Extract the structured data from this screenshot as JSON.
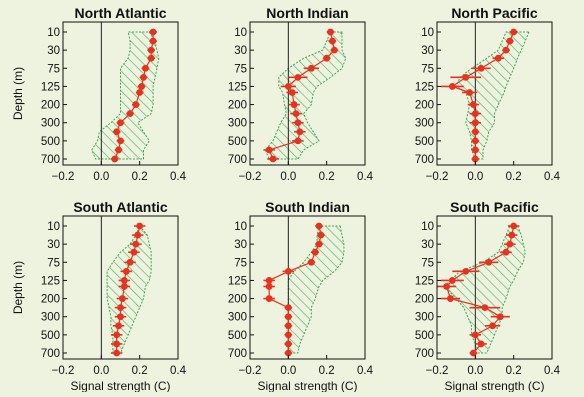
{
  "ylabel": "Depth (m)",
  "xlabel": "Signal strength (C)",
  "depth_ticks": [
    "10",
    "30",
    "75",
    "125",
    "200",
    "300",
    "500",
    "700"
  ],
  "x_ticks": [
    "−0.2",
    "0.0",
    "0.2",
    "0.4"
  ],
  "x_ticks_clipped": [
    "−0.2",
    "0.0",
    "0.2",
    "0.4"
  ],
  "colors": {
    "band_edge": "#3aa655",
    "band_hatch": "#5cb96a",
    "marker": "#e8321e",
    "axis": "#111111",
    "zero_line": "#222222"
  },
  "chart_data": [
    {
      "type": "line",
      "title": "North Atlantic",
      "xlim": [
        -0.2,
        0.4
      ],
      "depths": [
        10,
        20,
        30,
        50,
        75,
        100,
        125,
        150,
        200,
        250,
        300,
        400,
        500,
        600,
        700
      ],
      "values": [
        0.27,
        0.27,
        0.26,
        0.26,
        0.23,
        0.22,
        0.21,
        0.2,
        0.18,
        0.15,
        0.1,
        0.08,
        0.1,
        0.09,
        0.07
      ],
      "errors": [
        0.02,
        0.02,
        0.02,
        0.02,
        0.02,
        0.02,
        0.02,
        0.02,
        0.02,
        0.02,
        0.02,
        0.02,
        0.02,
        0.02,
        0.02
      ],
      "band_low": [
        0.14,
        0.15,
        0.15,
        0.14,
        0.1,
        0.1,
        0.1,
        0.1,
        0.1,
        0.1,
        0.05,
        -0.01,
        -0.02,
        -0.05,
        -0.03
      ],
      "band_high": [
        0.25,
        0.28,
        0.29,
        0.3,
        0.29,
        0.28,
        0.27,
        0.27,
        0.27,
        0.26,
        0.19,
        0.22,
        0.25,
        0.22,
        0.22
      ]
    },
    {
      "type": "line",
      "title": "North Indian",
      "xlim": [
        -0.2,
        0.4
      ],
      "depths": [
        10,
        20,
        30,
        50,
        75,
        100,
        125,
        150,
        200,
        250,
        300,
        400,
        500,
        600,
        700
      ],
      "values": [
        0.22,
        0.23,
        0.24,
        0.2,
        0.12,
        0.05,
        0.0,
        0.02,
        0.03,
        0.04,
        0.05,
        0.06,
        0.05,
        -0.1,
        -0.08
      ],
      "errors": [
        0.02,
        0.02,
        0.02,
        0.02,
        0.04,
        0.05,
        0.04,
        0.03,
        0.03,
        0.03,
        0.03,
        0.03,
        0.03,
        0.03,
        0.03
      ],
      "band_low": [
        0.22,
        0.2,
        0.18,
        0.08,
        0.0,
        -0.05,
        -0.05,
        -0.03,
        -0.02,
        -0.01,
        -0.04,
        -0.06,
        -0.08,
        -0.12,
        -0.1
      ],
      "band_high": [
        0.28,
        0.28,
        0.28,
        0.3,
        0.28,
        0.22,
        0.15,
        0.13,
        0.12,
        0.08,
        0.1,
        0.13,
        0.16,
        0.08,
        0.05
      ]
    },
    {
      "type": "line",
      "title": "North Pacific",
      "xlim": [
        -0.2,
        0.4
      ],
      "depths": [
        10,
        20,
        30,
        50,
        75,
        100,
        125,
        150,
        200,
        250,
        300,
        400,
        500,
        600,
        700
      ],
      "values": [
        0.2,
        0.18,
        0.16,
        0.12,
        0.03,
        -0.05,
        -0.12,
        -0.03,
        -0.01,
        0.0,
        0.0,
        0.0,
        0.0,
        0.0,
        0.0
      ],
      "errors": [
        0.02,
        0.02,
        0.02,
        0.03,
        0.05,
        0.08,
        0.06,
        0.04,
        0.03,
        0.03,
        0.03,
        0.02,
        0.02,
        0.02,
        0.02
      ],
      "band_low": [
        0.16,
        0.14,
        0.12,
        0.06,
        -0.02,
        -0.08,
        -0.1,
        -0.05,
        -0.03,
        -0.04,
        -0.05,
        -0.03,
        -0.02,
        -0.02,
        0.0
      ],
      "band_high": [
        0.28,
        0.26,
        0.24,
        0.22,
        0.2,
        0.18,
        0.16,
        0.15,
        0.12,
        0.1,
        0.1,
        0.07,
        0.06,
        0.04,
        0.04
      ]
    },
    {
      "type": "line",
      "title": "South Atlantic",
      "xlim": [
        -0.2,
        0.4
      ],
      "depths": [
        10,
        20,
        30,
        50,
        75,
        100,
        125,
        150,
        200,
        250,
        300,
        400,
        500,
        600,
        700
      ],
      "values": [
        0.2,
        0.19,
        0.18,
        0.17,
        0.15,
        0.13,
        0.12,
        0.12,
        0.11,
        0.1,
        0.1,
        0.09,
        0.08,
        0.08,
        0.08
      ],
      "errors": [
        0.03,
        0.03,
        0.03,
        0.03,
        0.03,
        0.03,
        0.03,
        0.03,
        0.03,
        0.03,
        0.03,
        0.03,
        0.03,
        0.03,
        0.03
      ],
      "band_low": [
        0.2,
        0.18,
        0.15,
        0.1,
        0.06,
        0.03,
        0.03,
        0.03,
        0.03,
        0.04,
        0.05,
        0.05,
        0.06,
        0.06,
        0.06
      ],
      "band_high": [
        0.2,
        0.24,
        0.25,
        0.26,
        0.26,
        0.26,
        0.25,
        0.23,
        0.22,
        0.2,
        0.18,
        0.16,
        0.14,
        0.12,
        0.1
      ]
    },
    {
      "type": "line",
      "title": "South Indian",
      "xlim": [
        -0.2,
        0.4
      ],
      "depths": [
        10,
        20,
        30,
        50,
        75,
        100,
        125,
        150,
        200,
        250,
        300,
        400,
        500,
        600,
        700
      ],
      "values": [
        0.16,
        0.17,
        0.16,
        0.14,
        0.12,
        0.0,
        -0.1,
        -0.1,
        -0.1,
        0.0,
        0.0,
        0.0,
        0.0,
        0.0,
        0.0
      ],
      "errors": [
        0.02,
        0.02,
        0.02,
        0.02,
        0.02,
        0.03,
        0.03,
        0.03,
        0.03,
        0.02,
        0.02,
        0.02,
        0.02,
        0.02,
        0.02
      ],
      "band_low": [
        0.16,
        0.15,
        0.15,
        0.12,
        0.08,
        0.03,
        0.0,
        0.0,
        0.0,
        0.0,
        0.0,
        0.0,
        0.0,
        0.0,
        0.0
      ],
      "band_high": [
        0.27,
        0.28,
        0.29,
        0.29,
        0.28,
        0.24,
        0.18,
        0.16,
        0.14,
        0.12,
        0.12,
        0.1,
        0.08,
        0.06,
        0.05
      ]
    },
    {
      "type": "line",
      "title": "South Pacific",
      "xlim": [
        -0.2,
        0.4
      ],
      "depths": [
        10,
        20,
        30,
        50,
        75,
        100,
        125,
        150,
        200,
        250,
        300,
        400,
        500,
        600,
        700
      ],
      "values": [
        0.2,
        0.19,
        0.18,
        0.16,
        0.07,
        -0.05,
        -0.12,
        -0.15,
        -0.13,
        0.05,
        0.13,
        0.09,
        0.0,
        0.03,
        -0.01
      ],
      "errors": [
        0.03,
        0.03,
        0.03,
        0.03,
        0.05,
        0.07,
        0.06,
        0.05,
        0.05,
        0.08,
        0.05,
        0.04,
        0.03,
        0.03,
        0.02
      ],
      "band_low": [
        0.18,
        0.16,
        0.14,
        0.12,
        0.04,
        -0.08,
        -0.13,
        -0.16,
        -0.1,
        -0.06,
        -0.04,
        -0.02,
        -0.02,
        0.0,
        0.0
      ],
      "band_high": [
        0.22,
        0.24,
        0.25,
        0.26,
        0.25,
        0.22,
        0.2,
        0.18,
        0.16,
        0.14,
        0.14,
        0.12,
        0.1,
        0.08,
        0.06
      ]
    }
  ]
}
